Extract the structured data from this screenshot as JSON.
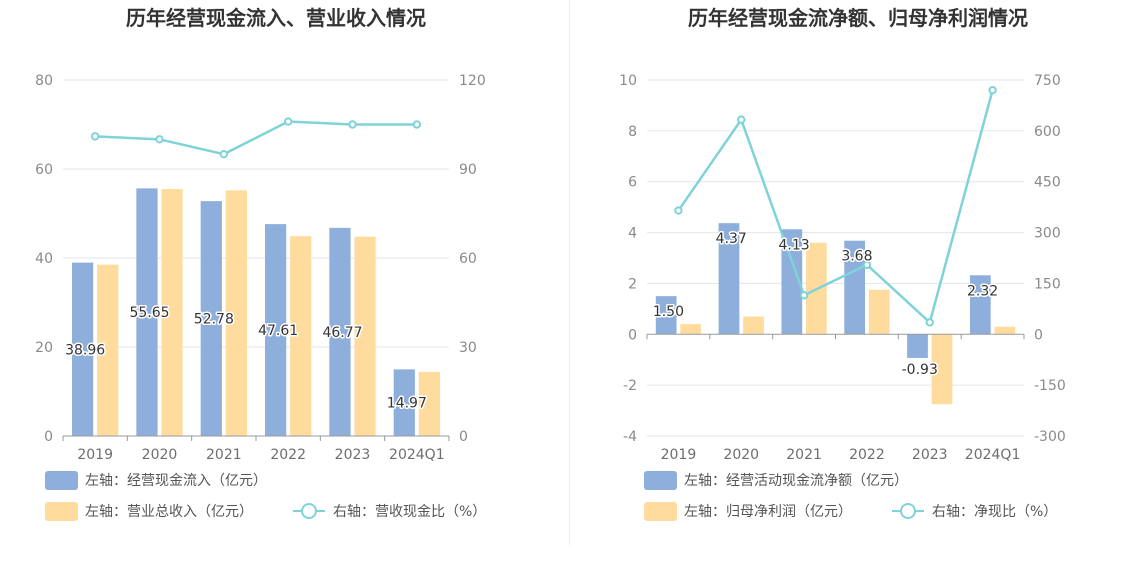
{
  "colors": {
    "bar_primary": "#8eaedc",
    "bar_secondary": "#ffdc9e",
    "line": "#7fd3d8",
    "grid": "#e3e6ee",
    "axis": "#9a9a9a"
  },
  "chart_data": [
    {
      "type": "bar",
      "title": "历年经营现金流入、营业收入情况",
      "categories": [
        "2019",
        "2020",
        "2021",
        "2022",
        "2023",
        "2024Q1"
      ],
      "left_axis": {
        "ticks": [
          "0",
          "20",
          "40",
          "60",
          "80"
        ],
        "ylim": [
          0,
          80
        ]
      },
      "right_axis": {
        "ticks": [
          "0",
          "30",
          "60",
          "90",
          "120"
        ],
        "ylim": [
          0,
          120
        ]
      },
      "series": [
        {
          "name": "左轴：经营现金流入（亿元）",
          "kind": "bar",
          "axis": "left",
          "values": [
            38.96,
            55.65,
            52.78,
            47.61,
            46.77,
            14.97
          ],
          "labels": [
            "38.96",
            "55.65",
            "52.78",
            "47.61",
            "46.77",
            "14.97"
          ]
        },
        {
          "name": "左轴：营业总收入（亿元）",
          "kind": "bar",
          "axis": "left",
          "values": [
            38.5,
            55.5,
            55.2,
            44.9,
            44.8,
            14.4
          ]
        },
        {
          "name": "右轴：营收现金比（%）",
          "kind": "line",
          "axis": "right",
          "values": [
            101,
            100,
            95,
            106,
            105,
            105
          ]
        }
      ]
    },
    {
      "type": "bar",
      "title": "历年经营现金流净额、归母净利润情况",
      "categories": [
        "2019",
        "2020",
        "2021",
        "2022",
        "2023",
        "2024Q1"
      ],
      "left_axis": {
        "ticks": [
          "-4",
          "-2",
          "0",
          "2",
          "4",
          "6",
          "8",
          "10"
        ],
        "ylim": [
          -4,
          10
        ]
      },
      "right_axis": {
        "ticks": [
          "-300",
          "-150",
          "0",
          "150",
          "300",
          "450",
          "600",
          "750"
        ],
        "ylim": [
          -300,
          750
        ]
      },
      "series": [
        {
          "name": "左轴：经营活动现金流净额（亿元）",
          "kind": "bar",
          "axis": "left",
          "values": [
            1.5,
            4.37,
            4.13,
            3.68,
            -0.93,
            2.32
          ],
          "labels": [
            "1.50",
            "4.37",
            "4.13",
            "3.68",
            "-0.93",
            "2.32"
          ]
        },
        {
          "name": "左轴：归母净利润（亿元）",
          "kind": "bar",
          "axis": "left",
          "values": [
            0.4,
            0.7,
            3.6,
            1.75,
            -2.75,
            0.3
          ]
        },
        {
          "name": "右轴：净现比（%）",
          "kind": "line",
          "axis": "right",
          "values": [
            365,
            633,
            115,
            205,
            35,
            720
          ]
        }
      ]
    }
  ]
}
